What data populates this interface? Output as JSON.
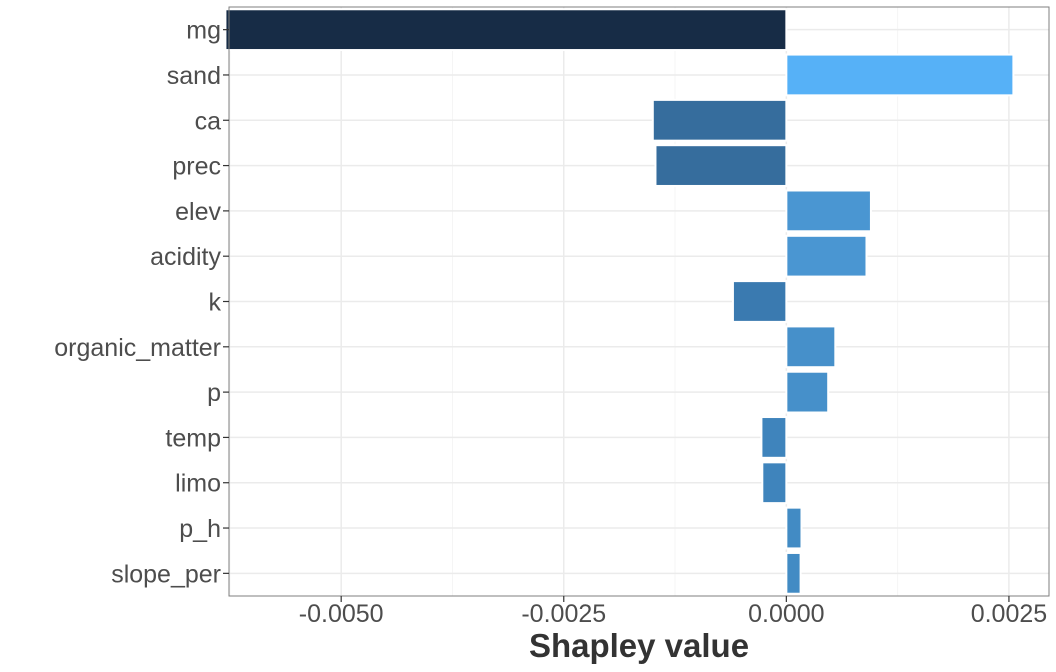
{
  "chart_data": {
    "type": "bar",
    "orientation": "horizontal",
    "xlabel": "Shapley value",
    "ylabel": "",
    "xlim": [
      -0.00626,
      0.00295
    ],
    "x_ticks": [
      -0.005,
      -0.0025,
      0.0,
      0.0025
    ],
    "x_tick_labels": [
      "-0.0050",
      "-0.0025",
      "0.0000",
      "0.0025"
    ],
    "grid": true,
    "legend": "none",
    "categories": [
      "mg",
      "sand",
      "ca",
      "prec",
      "elev",
      "acidity",
      "k",
      "organic_matter",
      "p",
      "temp",
      "limo",
      "p_h",
      "slope_per"
    ],
    "values": [
      -0.0063,
      0.00255,
      -0.0015,
      -0.00147,
      0.00095,
      0.0009,
      -0.0006,
      0.00055,
      0.00047,
      -0.00028,
      -0.00027,
      0.00017,
      0.00016
    ],
    "bar_colors": [
      "#172C46",
      "#56B1F7",
      "#366D9D",
      "#366D9D",
      "#4A96D2",
      "#4A96D2",
      "#3A7AB0",
      "#4690CA",
      "#4690CA",
      "#3F84BC",
      "#3F84BC",
      "#428BC4",
      "#428BC4"
    ],
    "colors": {
      "panel_border": "#7f7f7f",
      "grid_major": "#ebebeb",
      "grid_minor": "#f5f5f5"
    }
  }
}
